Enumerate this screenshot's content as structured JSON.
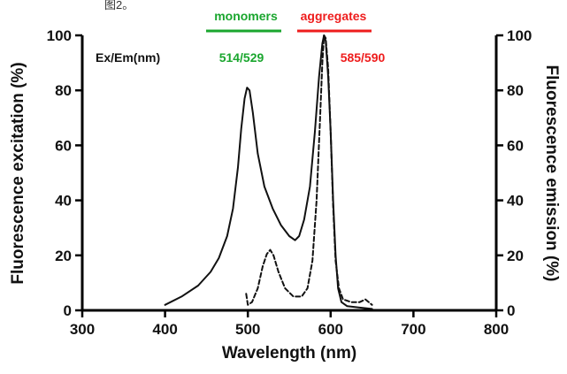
{
  "header_fragment": "图2。",
  "chart_data": {
    "type": "line",
    "xlabel": "Wavelength (nm)",
    "ylabel_left": "Fluorescence excitation (%)",
    "ylabel_right": "Fluorescence emission (%)",
    "xlim": [
      300,
      800
    ],
    "ylim": [
      0,
      100
    ],
    "x_ticks": [
      300,
      400,
      500,
      600,
      700,
      800
    ],
    "y_ticks": [
      0,
      20,
      40,
      60,
      80,
      100
    ],
    "grid": false,
    "annotations": {
      "exem_label": "Ex/Em(nm)",
      "monomers_label": "monomers",
      "monomers_values": "514/529",
      "monomers_color": "#1aa62e",
      "aggregates_label": "aggregates",
      "aggregates_values": "585/590",
      "aggregates_color": "#ee1c1c"
    },
    "series": [
      {
        "style": "solid",
        "color": "#111111",
        "points": [
          [
            400,
            2
          ],
          [
            420,
            5
          ],
          [
            440,
            9
          ],
          [
            455,
            14
          ],
          [
            465,
            19
          ],
          [
            475,
            27
          ],
          [
            482,
            37
          ],
          [
            488,
            52
          ],
          [
            492,
            66
          ],
          [
            496,
            77
          ],
          [
            499,
            81
          ],
          [
            502,
            80
          ],
          [
            506,
            72
          ],
          [
            512,
            57
          ],
          [
            520,
            45
          ],
          [
            530,
            37
          ],
          [
            540,
            31
          ],
          [
            550,
            27
          ],
          [
            557,
            25.5
          ],
          [
            562,
            27
          ],
          [
            568,
            33
          ],
          [
            575,
            45
          ],
          [
            581,
            65
          ],
          [
            586,
            85
          ],
          [
            590,
            97
          ],
          [
            592,
            100
          ],
          [
            594,
            98
          ],
          [
            597,
            85
          ],
          [
            600,
            65
          ],
          [
            603,
            40
          ],
          [
            606,
            20
          ],
          [
            609,
            8
          ],
          [
            613,
            3
          ],
          [
            620,
            1.5
          ],
          [
            635,
            1
          ],
          [
            650,
            0.5
          ]
        ]
      },
      {
        "style": "dashed",
        "color": "#111111",
        "points": [
          [
            498,
            6
          ],
          [
            500,
            2
          ],
          [
            505,
            3
          ],
          [
            512,
            8
          ],
          [
            518,
            16
          ],
          [
            523,
            20.5
          ],
          [
            527,
            22
          ],
          [
            531,
            20
          ],
          [
            537,
            14
          ],
          [
            545,
            8
          ],
          [
            555,
            5
          ],
          [
            565,
            5
          ],
          [
            572,
            8
          ],
          [
            578,
            18
          ],
          [
            583,
            40
          ],
          [
            587,
            68
          ],
          [
            590,
            90
          ],
          [
            592,
            100
          ],
          [
            594,
            99
          ],
          [
            597,
            88
          ],
          [
            600,
            65
          ],
          [
            603,
            38
          ],
          [
            606,
            18
          ],
          [
            610,
            8
          ],
          [
            615,
            4
          ],
          [
            625,
            3
          ],
          [
            635,
            3
          ],
          [
            642,
            4
          ],
          [
            650,
            2
          ]
        ]
      }
    ]
  }
}
